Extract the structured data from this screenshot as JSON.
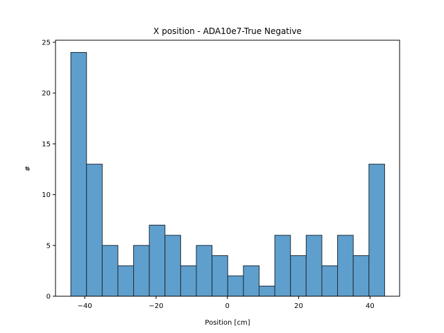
{
  "chart_data": {
    "type": "bar",
    "title": "X position - ADA10e7-True Negative",
    "xlabel": "Position [cm]",
    "ylabel": "#",
    "bin_edges": [
      -43.9,
      -39.5,
      -35.1,
      -30.7,
      -26.3,
      -21.9,
      -17.5,
      -13.1,
      -8.7,
      -4.3,
      0.1,
      4.5,
      8.9,
      13.3,
      17.7,
      22.1,
      26.5,
      30.9,
      35.3,
      39.7,
      44.1
    ],
    "values": [
      24,
      13,
      5,
      3,
      5,
      7,
      6,
      3,
      5,
      4,
      2,
      3,
      1,
      6,
      4,
      6,
      3,
      6,
      4,
      13
    ],
    "xlim": [
      -48.2,
      48.3
    ],
    "ylim": [
      0,
      25.2
    ],
    "xticks": [
      -40,
      -20,
      0,
      20,
      40
    ],
    "xtick_labels": [
      "−40",
      "−20",
      "0",
      "20",
      "40"
    ],
    "yticks": [
      0,
      5,
      10,
      15,
      20,
      25
    ],
    "ytick_labels": [
      "0",
      "5",
      "10",
      "15",
      "20",
      "25"
    ],
    "bar_color": "#5f9fcd",
    "edge_color": "#1f2d3a",
    "grid": false,
    "legend": "none"
  }
}
